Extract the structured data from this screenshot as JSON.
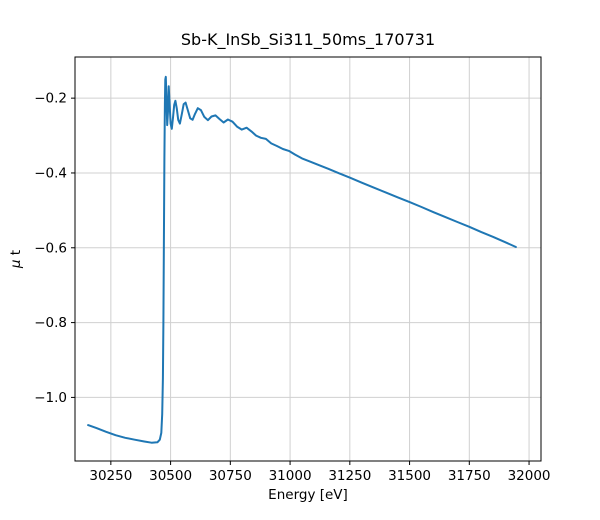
{
  "chart_data": {
    "type": "line",
    "title": "Sb-K_InSb_Si311_50ms_170731",
    "xlabel": "Energy [eV]",
    "ylabel": "μ t",
    "ylabel_symbol": "μ",
    "ylabel_unit": " t",
    "xlim": [
      30100,
      32050
    ],
    "ylim": [
      -1.17,
      -0.09
    ],
    "x_tick_values": [
      30250,
      30500,
      30750,
      31000,
      31250,
      31500,
      31750,
      32000
    ],
    "x_tick_labels": [
      "30250",
      "30500",
      "30750",
      "31000",
      "31250",
      "31500",
      "31750",
      "32000"
    ],
    "y_tick_values": [
      -0.2,
      -0.4,
      -0.6,
      -0.8,
      -1.0
    ],
    "y_tick_labels": [
      "−0.2",
      "−0.4",
      "−0.6",
      "−0.8",
      "−1.0"
    ],
    "grid": true,
    "grid_color": "#d0d0d0",
    "line_color": "#1f77b4",
    "axes_color": "#000000",
    "legend": null,
    "series": [
      {
        "name": "mu_t",
        "points": [
          [
            30155,
            -1.074
          ],
          [
            30190,
            -1.082
          ],
          [
            30230,
            -1.092
          ],
          [
            30270,
            -1.101
          ],
          [
            30310,
            -1.108
          ],
          [
            30350,
            -1.113
          ],
          [
            30390,
            -1.118
          ],
          [
            30420,
            -1.121
          ],
          [
            30445,
            -1.12
          ],
          [
            30455,
            -1.113
          ],
          [
            30461,
            -1.095
          ],
          [
            30465,
            -1.045
          ],
          [
            30468,
            -0.95
          ],
          [
            30470,
            -0.8
          ],
          [
            30472,
            -0.58
          ],
          [
            30474,
            -0.36
          ],
          [
            30476,
            -0.215
          ],
          [
            30478,
            -0.15
          ],
          [
            30480,
            -0.143
          ],
          [
            30483,
            -0.205
          ],
          [
            30486,
            -0.272
          ],
          [
            30489,
            -0.235
          ],
          [
            30492,
            -0.168
          ],
          [
            30496,
            -0.215
          ],
          [
            30500,
            -0.268
          ],
          [
            30505,
            -0.282
          ],
          [
            30510,
            -0.252
          ],
          [
            30515,
            -0.218
          ],
          [
            30520,
            -0.207
          ],
          [
            30526,
            -0.228
          ],
          [
            30532,
            -0.258
          ],
          [
            30539,
            -0.268
          ],
          [
            30547,
            -0.243
          ],
          [
            30555,
            -0.216
          ],
          [
            30563,
            -0.212
          ],
          [
            30572,
            -0.232
          ],
          [
            30582,
            -0.254
          ],
          [
            30592,
            -0.258
          ],
          [
            30602,
            -0.242
          ],
          [
            30614,
            -0.227
          ],
          [
            30627,
            -0.232
          ],
          [
            30641,
            -0.25
          ],
          [
            30656,
            -0.259
          ],
          [
            30671,
            -0.249
          ],
          [
            30688,
            -0.246
          ],
          [
            30705,
            -0.256
          ],
          [
            30722,
            -0.265
          ],
          [
            30740,
            -0.257
          ],
          [
            30759,
            -0.263
          ],
          [
            30778,
            -0.276
          ],
          [
            30798,
            -0.284
          ],
          [
            30818,
            -0.279
          ],
          [
            30838,
            -0.289
          ],
          [
            30858,
            -0.3
          ],
          [
            30878,
            -0.306
          ],
          [
            30899,
            -0.309
          ],
          [
            30921,
            -0.321
          ],
          [
            30945,
            -0.328
          ],
          [
            30970,
            -0.336
          ],
          [
            30995,
            -0.341
          ],
          [
            31021,
            -0.351
          ],
          [
            31050,
            -0.361
          ],
          [
            31082,
            -0.369
          ],
          [
            31120,
            -0.379
          ],
          [
            31160,
            -0.389
          ],
          [
            31205,
            -0.401
          ],
          [
            31252,
            -0.413
          ],
          [
            31300,
            -0.426
          ],
          [
            31350,
            -0.439
          ],
          [
            31400,
            -0.452
          ],
          [
            31450,
            -0.465
          ],
          [
            31500,
            -0.478
          ],
          [
            31550,
            -0.491
          ],
          [
            31600,
            -0.505
          ],
          [
            31650,
            -0.518
          ],
          [
            31700,
            -0.531
          ],
          [
            31750,
            -0.544
          ],
          [
            31800,
            -0.558
          ],
          [
            31850,
            -0.571
          ],
          [
            31900,
            -0.585
          ],
          [
            31945,
            -0.598
          ]
        ]
      }
    ]
  }
}
